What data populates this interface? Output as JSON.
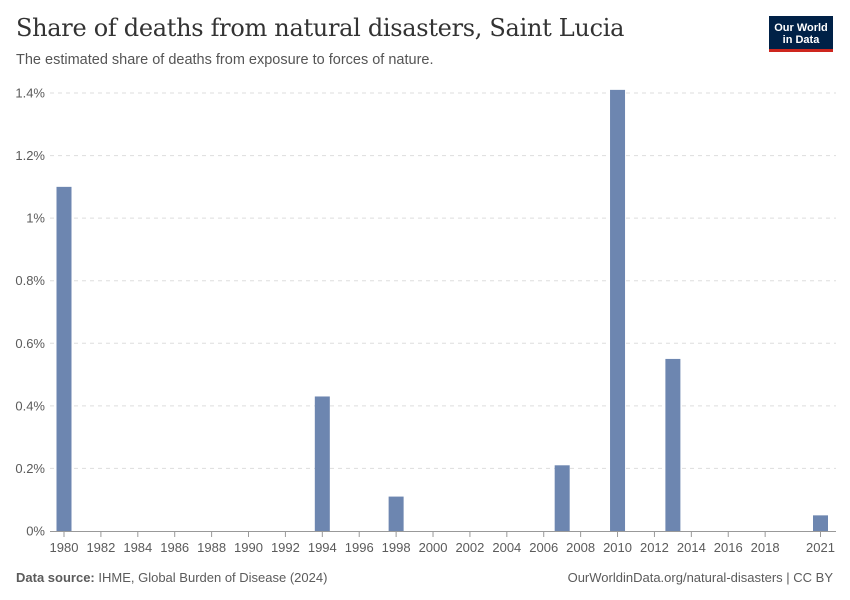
{
  "header": {
    "title": "Share of deaths from natural disasters, Saint Lucia",
    "subtitle": "The estimated share of deaths from exposure to forces of nature."
  },
  "logo": {
    "line1": "Our World",
    "line2": "in Data"
  },
  "footer": {
    "source_label": "Data source:",
    "source_text": "IHME, Global Burden of Disease (2024)",
    "link": "OurWorldinData.org/natural-disasters | CC BY"
  },
  "colors": {
    "bar": "#6d86b0",
    "grid": "#dddddd",
    "axis": "#999999"
  },
  "chart_data": {
    "type": "bar",
    "title": "Share of deaths from natural disasters, Saint Lucia",
    "ylabel": "",
    "xlabel": "",
    "ylim": [
      0,
      1.4
    ],
    "y_ticks": [
      0,
      0.2,
      0.4,
      0.6,
      0.8,
      1.0,
      1.2,
      1.4
    ],
    "y_tick_labels": [
      "0%",
      "0.2%",
      "0.4%",
      "0.6%",
      "0.8%",
      "1%",
      "1.2%",
      "1.4%"
    ],
    "x_range": [
      1980,
      2021
    ],
    "x_tick_labels": [
      "1980",
      "1982",
      "1984",
      "1986",
      "1988",
      "1990",
      "1992",
      "1994",
      "1996",
      "1998",
      "2000",
      "2002",
      "2004",
      "2006",
      "2008",
      "2010",
      "2012",
      "2014",
      "2016",
      "2018",
      "2021"
    ],
    "points": [
      {
        "year": 1980,
        "value": 1.1
      },
      {
        "year": 1994,
        "value": 0.43
      },
      {
        "year": 1998,
        "value": 0.11
      },
      {
        "year": 2007,
        "value": 0.21
      },
      {
        "year": 2010,
        "value": 1.41
      },
      {
        "year": 2013,
        "value": 0.55
      },
      {
        "year": 2021,
        "value": 0.05
      }
    ]
  }
}
